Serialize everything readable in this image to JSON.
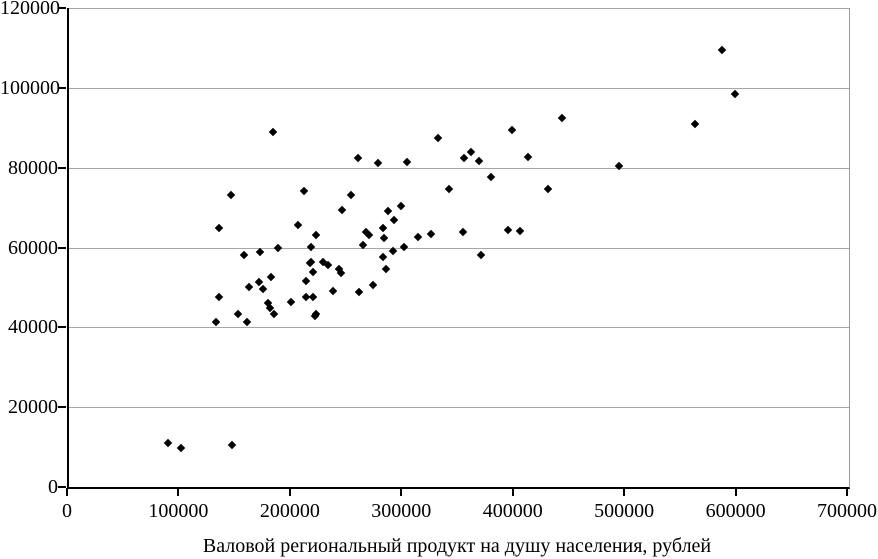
{
  "chart_data": {
    "type": "scatter",
    "title": "",
    "xlabel": "Валовой региональный продукт на душу населения, рублей",
    "ylabel": "",
    "xlim": [
      0,
      700000
    ],
    "ylim": [
      0,
      120000
    ],
    "x_ticks": [
      "0",
      "100000",
      "200000",
      "300000",
      "400000",
      "500000",
      "600000",
      "700000"
    ],
    "y_ticks": [
      "0",
      "20000",
      "40000",
      "60000",
      "80000",
      "100000",
      "120000"
    ],
    "grid": "horizontal-only",
    "legend_position": "none",
    "marker": "diamond",
    "marker_color": "#000000",
    "gridline_color": "#a6a6a6",
    "axis_color": "#000000",
    "points": [
      [
        88800,
        11000
      ],
      [
        100500,
        9750
      ],
      [
        146300,
        10500
      ],
      [
        131900,
        41250
      ],
      [
        134600,
        47500
      ],
      [
        134600,
        65000
      ],
      [
        145400,
        73250
      ],
      [
        151700,
        43250
      ],
      [
        157000,
        58000
      ],
      [
        159700,
        41250
      ],
      [
        161500,
        50000
      ],
      [
        170500,
        51250
      ],
      [
        171400,
        58750
      ],
      [
        174100,
        49500
      ],
      [
        178600,
        46000
      ],
      [
        180400,
        44750
      ],
      [
        181300,
        52500
      ],
      [
        183100,
        89000
      ],
      [
        184000,
        43250
      ],
      [
        187600,
        59750
      ],
      [
        199200,
        46250
      ],
      [
        205500,
        65750
      ],
      [
        210900,
        74250
      ],
      [
        212700,
        51500
      ],
      [
        212700,
        47500
      ],
      [
        216300,
        56000
      ],
      [
        217200,
        60250
      ],
      [
        217200,
        56250
      ],
      [
        219000,
        53750
      ],
      [
        219000,
        47500
      ],
      [
        220700,
        42750
      ],
      [
        221700,
        63250
      ],
      [
        221700,
        43250
      ],
      [
        227900,
        56250
      ],
      [
        232400,
        55500
      ],
      [
        236900,
        49000
      ],
      [
        242300,
        54500
      ],
      [
        244100,
        53500
      ],
      [
        245000,
        69500
      ],
      [
        253100,
        73250
      ],
      [
        259400,
        82500
      ],
      [
        260200,
        48750
      ],
      [
        263800,
        60750
      ],
      [
        266500,
        64000
      ],
      [
        269200,
        63250
      ],
      [
        272800,
        50500
      ],
      [
        277300,
        81250
      ],
      [
        281800,
        65000
      ],
      [
        281800,
        57500
      ],
      [
        282700,
        62500
      ],
      [
        284500,
        54500
      ],
      [
        286300,
        69250
      ],
      [
        290700,
        59000
      ],
      [
        291700,
        67000
      ],
      [
        297900,
        70500
      ],
      [
        300600,
        60250
      ],
      [
        303300,
        81500
      ],
      [
        313200,
        62750
      ],
      [
        324900,
        63500
      ],
      [
        331100,
        87500
      ],
      [
        341000,
        74750
      ],
      [
        353600,
        64000
      ],
      [
        354500,
        82500
      ],
      [
        360800,
        84000
      ],
      [
        367900,
        81750
      ],
      [
        369700,
        58000
      ],
      [
        378700,
        77750
      ],
      [
        394000,
        64500
      ],
      [
        397500,
        89500
      ],
      [
        404700,
        64250
      ],
      [
        411900,
        82750
      ],
      [
        429800,
        74750
      ],
      [
        442400,
        92500
      ],
      [
        493500,
        80500
      ],
      [
        561700,
        91000
      ],
      [
        586000,
        109500
      ],
      [
        597600,
        98500
      ]
    ]
  }
}
